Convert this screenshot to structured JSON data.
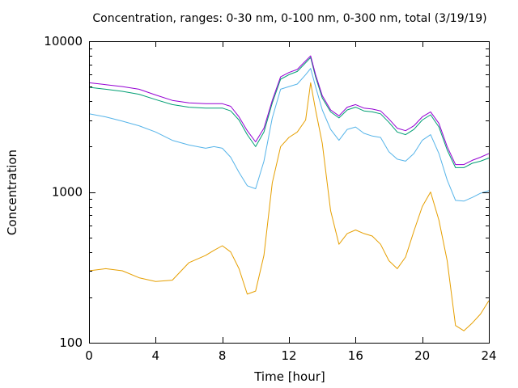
{
  "chart_data": {
    "type": "line",
    "title": "Concentration, ranges: 0-30 nm, 0-100 nm, 0-300 nm, total (3/19/19)",
    "xlabel": "Time [hour]",
    "ylabel": "Concentration",
    "xlim": [
      0,
      24
    ],
    "ylim": [
      100,
      10000
    ],
    "yscale": "log",
    "grid": false,
    "legend": "none",
    "x_ticks": [
      0,
      4,
      8,
      12,
      16,
      20,
      24
    ],
    "x_tick_labels": [
      "0",
      "4",
      "8",
      "12",
      "16",
      "20",
      "24"
    ],
    "y_ticks": [
      100,
      1000,
      10000
    ],
    "y_tick_labels": [
      "100",
      "1000",
      "10000"
    ],
    "series": [
      {
        "color": "#e69f00",
        "x": [
          0,
          1,
          2,
          3,
          4,
          5,
          6,
          7,
          7.5,
          8,
          8.5,
          9,
          9.5,
          10,
          10.5,
          11,
          11.5,
          12,
          12.5,
          13,
          13.3,
          13.6,
          14,
          14.5,
          15,
          15.5,
          16,
          16.5,
          17,
          17.5,
          18,
          18.5,
          19,
          19.5,
          20,
          20.5,
          21,
          21.5,
          22,
          22.5,
          23,
          23.5,
          24
        ],
        "y": [
          300,
          310,
          300,
          270,
          255,
          260,
          340,
          380,
          410,
          440,
          400,
          310,
          210,
          220,
          380,
          1150,
          2000,
          2300,
          2500,
          3000,
          5300,
          3500,
          2100,
          750,
          450,
          530,
          560,
          530,
          510,
          450,
          350,
          310,
          370,
          550,
          800,
          1000,
          650,
          350,
          130,
          120,
          135,
          155,
          190
        ]
      },
      {
        "color": "#56b4e9",
        "x": [
          0,
          1,
          2,
          3,
          4,
          5,
          6,
          7,
          7.5,
          8,
          8.5,
          9,
          9.5,
          10,
          10.5,
          11,
          11.5,
          12,
          12.5,
          13,
          13.3,
          13.6,
          14,
          14.5,
          15,
          15.5,
          16,
          16.5,
          17,
          17.5,
          18,
          18.5,
          19,
          19.5,
          20,
          20.5,
          21,
          21.5,
          22,
          22.5,
          23,
          23.5,
          24
        ],
        "y": [
          3300,
          3150,
          2950,
          2750,
          2500,
          2200,
          2050,
          1950,
          2000,
          1950,
          1700,
          1350,
          1100,
          1050,
          1600,
          3100,
          4800,
          5000,
          5200,
          6000,
          6600,
          5000,
          3500,
          2600,
          2200,
          2600,
          2700,
          2450,
          2350,
          2300,
          1850,
          1650,
          1600,
          1800,
          2200,
          2400,
          1800,
          1200,
          880,
          870,
          920,
          980,
          1020
        ]
      },
      {
        "color": "#009e73",
        "x": [
          0,
          1,
          2,
          3,
          4,
          5,
          6,
          7,
          7.5,
          8,
          8.5,
          9,
          9.5,
          10,
          10.5,
          11,
          11.5,
          12,
          12.5,
          13,
          13.3,
          13.6,
          14,
          14.5,
          15,
          15.5,
          16,
          16.5,
          17,
          17.5,
          18,
          18.5,
          19,
          19.5,
          20,
          20.5,
          21,
          21.5,
          22,
          22.5,
          23,
          23.5,
          24
        ],
        "y": [
          4950,
          4800,
          4650,
          4450,
          4100,
          3800,
          3650,
          3600,
          3600,
          3600,
          3450,
          3000,
          2400,
          2000,
          2500,
          3900,
          5600,
          6000,
          6300,
          7200,
          7800,
          5800,
          4200,
          3400,
          3100,
          3500,
          3650,
          3450,
          3400,
          3300,
          2900,
          2500,
          2400,
          2600,
          3000,
          3250,
          2700,
          1900,
          1450,
          1450,
          1550,
          1600,
          1680
        ]
      },
      {
        "color": "#9400d3",
        "x": [
          0,
          1,
          2,
          3,
          4,
          5,
          6,
          7,
          7.5,
          8,
          8.5,
          9,
          9.5,
          10,
          10.5,
          11,
          11.5,
          12,
          12.5,
          13,
          13.3,
          13.6,
          14,
          14.5,
          15,
          15.5,
          16,
          16.5,
          17,
          17.5,
          18,
          18.5,
          19,
          19.5,
          20,
          20.5,
          21,
          21.5,
          22,
          22.5,
          23,
          23.5,
          24
        ],
        "y": [
          5300,
          5150,
          5000,
          4800,
          4400,
          4050,
          3900,
          3850,
          3850,
          3850,
          3700,
          3150,
          2550,
          2150,
          2650,
          4050,
          5800,
          6200,
          6500,
          7400,
          8000,
          6000,
          4350,
          3500,
          3200,
          3650,
          3800,
          3600,
          3550,
          3450,
          3050,
          2650,
          2550,
          2750,
          3150,
          3400,
          2850,
          2000,
          1520,
          1520,
          1620,
          1700,
          1800
        ]
      }
    ]
  }
}
